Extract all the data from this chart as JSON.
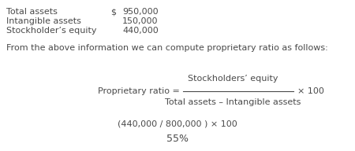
{
  "bg_color": "#ffffff",
  "text_color": "#4a4a4a",
  "line1_label": "Total assets",
  "line1_dollar": "$",
  "line1_value": "950,000",
  "line2_label": "Intangible assets",
  "line2_value": "150,000",
  "line3_label": "Stockholder’s equity",
  "line3_value": "440,000",
  "intro_text": "From the above information we can compute proprietary ratio as follows:",
  "ratio_label": "Proprietary ratio =",
  "numerator": "Stockholders’ equity",
  "denominator": "Total assets – Intangible assets",
  "times100": "× 100",
  "calculation": "(440,000 / 800,000 ) × 100",
  "result": "55%",
  "font_size": 8.0
}
